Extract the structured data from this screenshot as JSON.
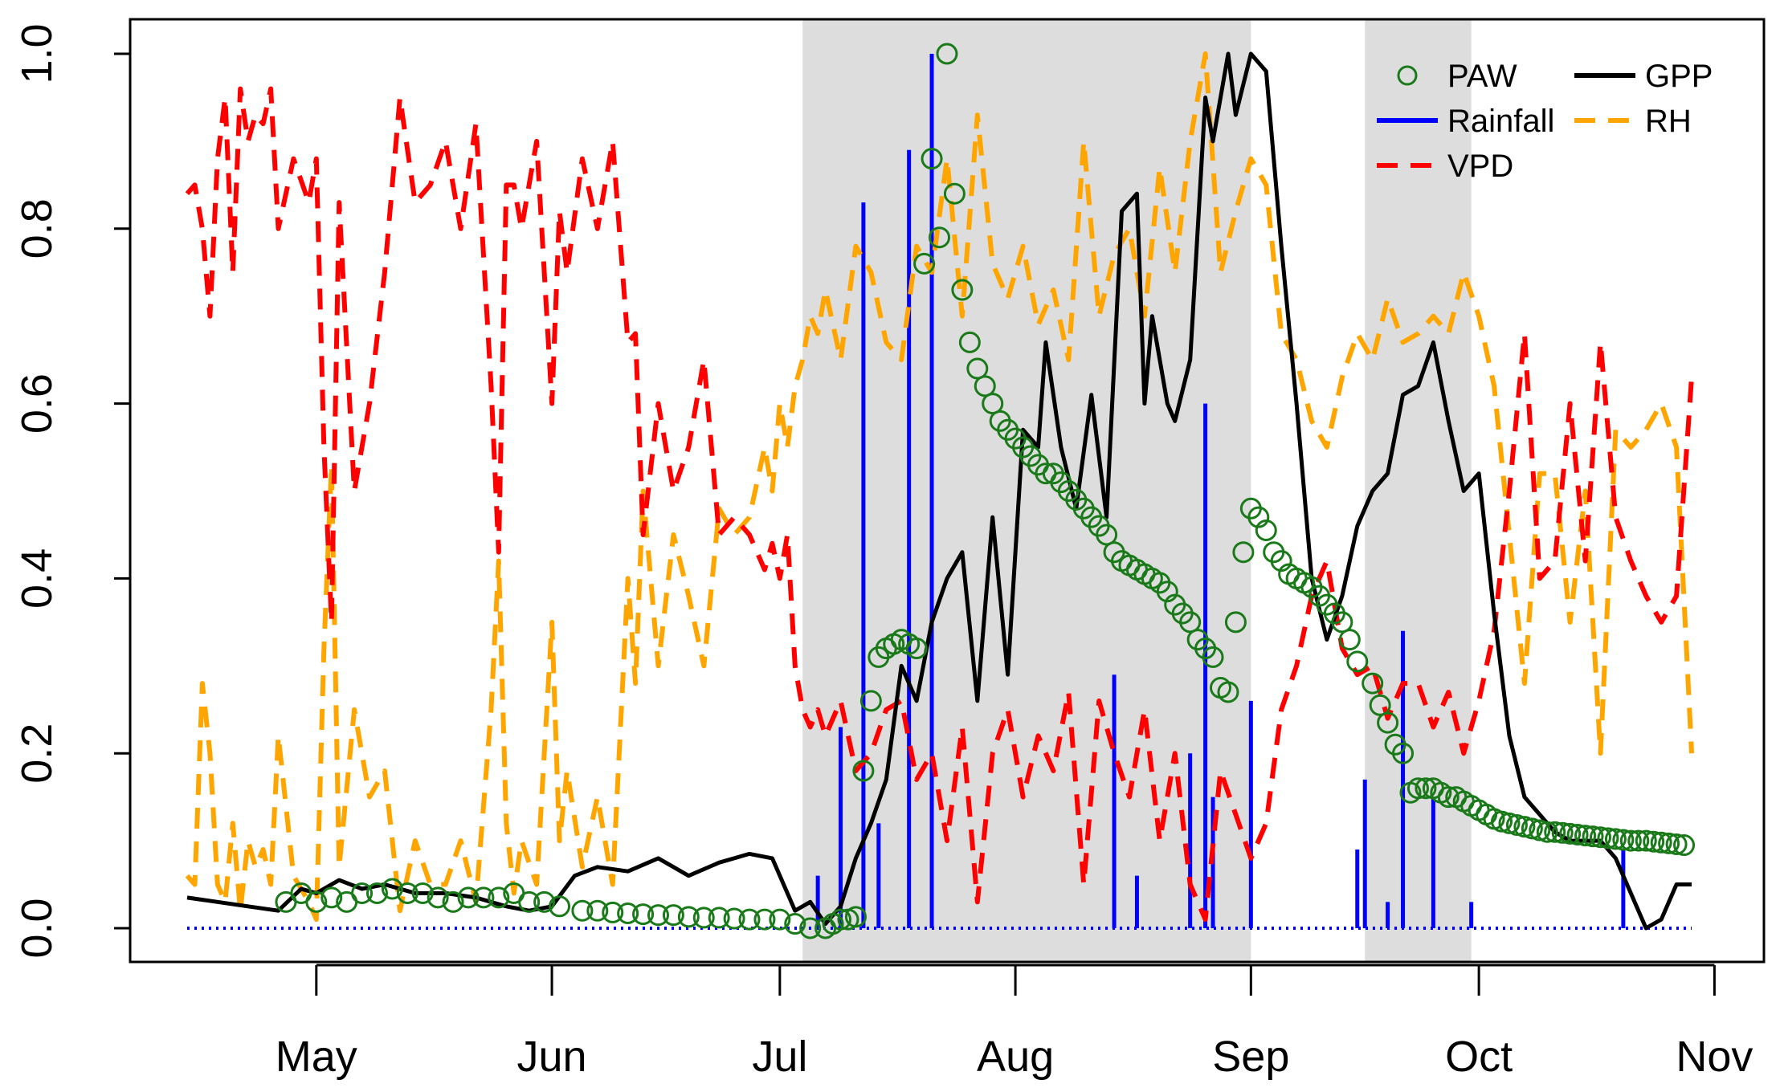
{
  "chart_data": {
    "type": "line",
    "title": "",
    "xlabel": "",
    "ylabel": "",
    "x_unit": "day of year",
    "x_range": [
      104,
      302
    ],
    "ylim": [
      0,
      1
    ],
    "y_ticks": [
      {
        "value": 0.0,
        "label": "0.0"
      },
      {
        "value": 0.2,
        "label": "0.2"
      },
      {
        "value": 0.4,
        "label": "0.4"
      },
      {
        "value": 0.6,
        "label": "0.6"
      },
      {
        "value": 0.8,
        "label": "0.8"
      },
      {
        "value": 1.0,
        "label": "1.0"
      }
    ],
    "x_ticks": [
      {
        "value": 121,
        "label": "May"
      },
      {
        "value": 152,
        "label": "Jun"
      },
      {
        "value": 182,
        "label": "Jul"
      },
      {
        "value": 213,
        "label": "Aug"
      },
      {
        "value": 244,
        "label": "Sep"
      },
      {
        "value": 274,
        "label": "Oct"
      },
      {
        "value": 305,
        "label": "Nov"
      }
    ],
    "shaded_periods": [
      {
        "start": 185,
        "end": 244
      },
      {
        "start": 259,
        "end": 273
      }
    ],
    "colors": {
      "PAW": "#1a7a1a",
      "Rainfall": "#0000ff",
      "RH": "#ffa500",
      "VPD": "#ff0000",
      "GPP": "#000000",
      "shade": "#dddddd"
    },
    "legend_position": "top-right",
    "legend": [
      {
        "key": "PAW",
        "label": "PAW",
        "style": "circle"
      },
      {
        "key": "GPP",
        "label": "GPP",
        "style": "solid"
      },
      {
        "key": "Rainfall",
        "label": "Rainfall",
        "style": "solid"
      },
      {
        "key": "RH",
        "label": "RH",
        "style": "dashed"
      },
      {
        "key": "VPD",
        "label": "VPD",
        "style": "dashed"
      }
    ],
    "series": [
      {
        "name": "GPP",
        "style": "solid",
        "x": [
          104,
          108,
          112,
          116,
          119,
          121,
          124,
          127,
          130,
          134,
          138,
          142,
          146,
          149,
          152,
          155,
          158,
          162,
          166,
          170,
          174,
          176,
          178,
          181,
          184,
          186,
          188,
          190,
          192,
          194,
          196,
          198,
          200,
          202,
          204,
          206,
          208,
          210,
          212,
          214,
          216,
          217,
          219,
          221,
          223,
          225,
          227,
          229,
          230,
          231,
          233,
          234,
          236,
          238,
          239,
          240,
          241,
          242,
          244,
          246,
          248,
          250,
          252,
          254,
          256,
          258,
          260,
          262,
          264,
          266,
          268,
          270,
          272,
          274,
          276,
          278,
          280,
          282,
          284,
          286,
          288,
          290,
          292,
          294,
          296,
          298,
          300,
          302
        ],
        "values": [
          0.035,
          0.03,
          0.025,
          0.02,
          0.045,
          0.04,
          0.055,
          0.045,
          0.05,
          0.04,
          0.04,
          0.035,
          0.025,
          0.02,
          0.025,
          0.06,
          0.07,
          0.065,
          0.08,
          0.06,
          0.075,
          0.08,
          0.085,
          0.08,
          0.02,
          0.03,
          0.005,
          0.025,
          0.08,
          0.12,
          0.17,
          0.3,
          0.26,
          0.35,
          0.4,
          0.43,
          0.26,
          0.47,
          0.29,
          0.57,
          0.55,
          0.67,
          0.55,
          0.48,
          0.61,
          0.47,
          0.82,
          0.84,
          0.6,
          0.7,
          0.6,
          0.58,
          0.65,
          0.95,
          0.9,
          0.95,
          1.0,
          0.93,
          1.0,
          0.98,
          0.78,
          0.6,
          0.4,
          0.33,
          0.38,
          0.46,
          0.5,
          0.52,
          0.61,
          0.62,
          0.67,
          0.58,
          0.5,
          0.52,
          0.36,
          0.22,
          0.15,
          0.13,
          0.11,
          0.1,
          0.1,
          0.1,
          0.08,
          0.04,
          0.0,
          0.01,
          0.05,
          0.05
        ]
      },
      {
        "name": "VPD",
        "style": "dashed",
        "x": [
          104,
          105,
          106,
          107,
          108,
          109,
          110,
          111,
          112,
          113,
          114,
          115,
          116,
          118,
          120,
          121,
          122,
          123,
          124,
          126,
          128,
          130,
          132,
          134,
          136,
          138,
          140,
          142,
          144,
          145,
          146,
          147,
          148,
          150,
          152,
          153,
          154,
          156,
          158,
          160,
          162,
          163,
          164,
          166,
          168,
          170,
          172,
          174,
          176,
          178,
          180,
          181,
          182,
          183,
          184,
          185,
          186,
          187,
          188,
          190,
          192,
          194,
          196,
          198,
          200,
          202,
          204,
          206,
          208,
          210,
          212,
          214,
          216,
          218,
          220,
          222,
          224,
          226,
          228,
          230,
          232,
          234,
          236,
          238,
          240,
          242,
          244,
          246,
          248,
          250,
          252,
          254,
          256,
          258,
          260,
          262,
          264,
          266,
          268,
          270,
          272,
          274,
          276,
          278,
          280,
          282,
          284,
          286,
          288,
          290,
          292,
          294,
          296,
          298,
          300,
          302
        ],
        "values": [
          0.84,
          0.85,
          0.8,
          0.7,
          0.88,
          0.95,
          0.75,
          0.96,
          0.9,
          0.93,
          0.92,
          0.96,
          0.8,
          0.88,
          0.83,
          0.88,
          0.55,
          0.35,
          0.83,
          0.5,
          0.6,
          0.75,
          0.95,
          0.83,
          0.85,
          0.9,
          0.8,
          0.92,
          0.62,
          0.43,
          0.85,
          0.85,
          0.8,
          0.9,
          0.6,
          0.82,
          0.75,
          0.88,
          0.8,
          0.9,
          0.67,
          0.68,
          0.45,
          0.6,
          0.5,
          0.55,
          0.65,
          0.45,
          0.47,
          0.45,
          0.41,
          0.44,
          0.4,
          0.45,
          0.3,
          0.25,
          0.23,
          0.25,
          0.22,
          0.26,
          0.18,
          0.2,
          0.25,
          0.26,
          0.17,
          0.2,
          0.1,
          0.23,
          0.03,
          0.2,
          0.25,
          0.15,
          0.22,
          0.18,
          0.27,
          0.05,
          0.26,
          0.2,
          0.15,
          0.25,
          0.1,
          0.2,
          0.05,
          0.01,
          0.18,
          0.13,
          0.08,
          0.12,
          0.25,
          0.3,
          0.38,
          0.42,
          0.32,
          0.29,
          0.3,
          0.24,
          0.28,
          0.28,
          0.23,
          0.27,
          0.2,
          0.26,
          0.34,
          0.5,
          0.68,
          0.4,
          0.42,
          0.6,
          0.42,
          0.67,
          0.47,
          0.42,
          0.38,
          0.35,
          0.38,
          0.63
        ]
      },
      {
        "name": "RH",
        "style": "dashed",
        "x": [
          104,
          105,
          106,
          107,
          108,
          109,
          110,
          111,
          112,
          113,
          114,
          115,
          116,
          118,
          120,
          121,
          122,
          123,
          124,
          126,
          128,
          130,
          132,
          134,
          136,
          138,
          140,
          142,
          144,
          145,
          146,
          147,
          148,
          150,
          152,
          153,
          154,
          156,
          158,
          160,
          162,
          163,
          164,
          166,
          168,
          170,
          172,
          174,
          176,
          178,
          180,
          181,
          182,
          183,
          184,
          185,
          186,
          187,
          188,
          190,
          192,
          194,
          196,
          198,
          200,
          202,
          204,
          206,
          208,
          210,
          212,
          214,
          216,
          218,
          220,
          222,
          224,
          226,
          228,
          230,
          232,
          234,
          236,
          238,
          240,
          242,
          244,
          246,
          248,
          250,
          252,
          254,
          256,
          258,
          260,
          262,
          264,
          266,
          268,
          270,
          272,
          274,
          276,
          278,
          280,
          282,
          284,
          286,
          288,
          290,
          292,
          294,
          296,
          298,
          300,
          302
        ],
        "values": [
          0.06,
          0.05,
          0.28,
          0.2,
          0.05,
          0.03,
          0.12,
          0.02,
          0.1,
          0.07,
          0.09,
          0.05,
          0.22,
          0.06,
          0.03,
          0.01,
          0.32,
          0.53,
          0.07,
          0.25,
          0.15,
          0.18,
          0.02,
          0.1,
          0.05,
          0.05,
          0.1,
          0.03,
          0.25,
          0.42,
          0.12,
          0.04,
          0.1,
          0.05,
          0.35,
          0.1,
          0.18,
          0.07,
          0.15,
          0.05,
          0.4,
          0.28,
          0.5,
          0.3,
          0.45,
          0.38,
          0.3,
          0.48,
          0.45,
          0.47,
          0.55,
          0.5,
          0.6,
          0.55,
          0.62,
          0.65,
          0.7,
          0.68,
          0.73,
          0.65,
          0.78,
          0.75,
          0.67,
          0.65,
          0.78,
          0.75,
          0.88,
          0.7,
          0.93,
          0.76,
          0.72,
          0.78,
          0.69,
          0.73,
          0.65,
          0.9,
          0.7,
          0.77,
          0.8,
          0.7,
          0.87,
          0.75,
          0.9,
          1.0,
          0.75,
          0.82,
          0.88,
          0.85,
          0.68,
          0.65,
          0.58,
          0.55,
          0.63,
          0.68,
          0.65,
          0.72,
          0.67,
          0.68,
          0.7,
          0.68,
          0.75,
          0.7,
          0.62,
          0.45,
          0.28,
          0.52,
          0.52,
          0.35,
          0.5,
          0.2,
          0.57,
          0.55,
          0.57,
          0.6,
          0.55,
          0.2
        ]
      },
      {
        "name": "PAW",
        "style": "circle",
        "x": [
          117,
          119,
          121,
          123,
          125,
          127,
          129,
          131,
          133,
          135,
          137,
          139,
          141,
          143,
          145,
          147,
          149,
          151,
          153,
          156,
          158,
          160,
          162,
          164,
          166,
          168,
          170,
          172,
          174,
          176,
          178,
          180,
          182,
          184,
          186,
          188,
          189,
          190,
          191,
          192,
          193,
          194,
          195,
          196,
          197,
          198,
          199,
          200,
          201,
          202,
          203,
          204,
          205,
          206,
          207,
          208,
          209,
          210,
          211,
          212,
          213,
          214,
          215,
          216,
          217,
          218,
          219,
          220,
          221,
          222,
          223,
          224,
          225,
          226,
          227,
          228,
          229,
          230,
          231,
          232,
          233,
          234,
          235,
          236,
          237,
          238,
          239,
          240,
          241,
          242,
          243,
          244,
          245,
          246,
          247,
          248,
          249,
          250,
          251,
          252,
          253,
          254,
          255,
          256,
          257,
          258,
          260,
          261,
          262,
          263,
          264,
          265,
          266,
          267,
          268,
          269,
          270,
          271,
          272,
          273,
          274,
          275,
          276,
          277,
          278,
          279,
          280,
          281,
          282,
          283,
          284,
          285,
          286,
          287,
          288,
          289,
          290,
          291,
          292,
          293,
          294,
          295,
          296,
          297,
          298,
          299,
          300,
          301
        ],
        "values": [
          0.03,
          0.04,
          0.03,
          0.035,
          0.03,
          0.04,
          0.04,
          0.045,
          0.04,
          0.04,
          0.035,
          0.03,
          0.035,
          0.035,
          0.035,
          0.04,
          0.03,
          0.03,
          0.025,
          0.02,
          0.02,
          0.018,
          0.017,
          0.016,
          0.015,
          0.015,
          0.013,
          0.012,
          0.012,
          0.011,
          0.01,
          0.01,
          0.01,
          0.005,
          0.0,
          0.0,
          0.005,
          0.01,
          0.01,
          0.013,
          0.18,
          0.26,
          0.31,
          0.32,
          0.325,
          0.33,
          0.325,
          0.32,
          0.76,
          0.88,
          0.79,
          1.0,
          0.84,
          0.73,
          0.67,
          0.64,
          0.62,
          0.6,
          0.58,
          0.57,
          0.56,
          0.55,
          0.54,
          0.53,
          0.52,
          0.52,
          0.51,
          0.5,
          0.49,
          0.48,
          0.47,
          0.46,
          0.45,
          0.43,
          0.42,
          0.415,
          0.41,
          0.405,
          0.4,
          0.395,
          0.385,
          0.37,
          0.36,
          0.35,
          0.33,
          0.32,
          0.31,
          0.275,
          0.27,
          0.35,
          0.43,
          0.48,
          0.47,
          0.455,
          0.43,
          0.42,
          0.405,
          0.4,
          0.395,
          0.39,
          0.38,
          0.37,
          0.36,
          0.35,
          0.33,
          0.305,
          0.28,
          0.255,
          0.235,
          0.21,
          0.2,
          0.155,
          0.16,
          0.16,
          0.16,
          0.155,
          0.15,
          0.15,
          0.145,
          0.14,
          0.135,
          0.13,
          0.125,
          0.122,
          0.12,
          0.118,
          0.116,
          0.114,
          0.112,
          0.11,
          0.11,
          0.109,
          0.108,
          0.107,
          0.106,
          0.105,
          0.104,
          0.103,
          0.102,
          0.101,
          0.1,
          0.1,
          0.1,
          0.099,
          0.098,
          0.097,
          0.096,
          0.095
        ]
      },
      {
        "name": "Rainfall",
        "style": "bars",
        "x": [
          187,
          190,
          193,
          195,
          199,
          202,
          226,
          229,
          236,
          238,
          239,
          244,
          258,
          259,
          262,
          264,
          268,
          273,
          293
        ],
        "values": [
          0.06,
          0.23,
          0.83,
          0.12,
          0.89,
          1.0,
          0.29,
          0.06,
          0.2,
          0.6,
          0.15,
          0.26,
          0.09,
          0.17,
          0.03,
          0.34,
          0.15,
          0.03,
          0.09
        ],
        "baseline": {
          "value": 0.0,
          "style": "dotted"
        }
      }
    ]
  }
}
